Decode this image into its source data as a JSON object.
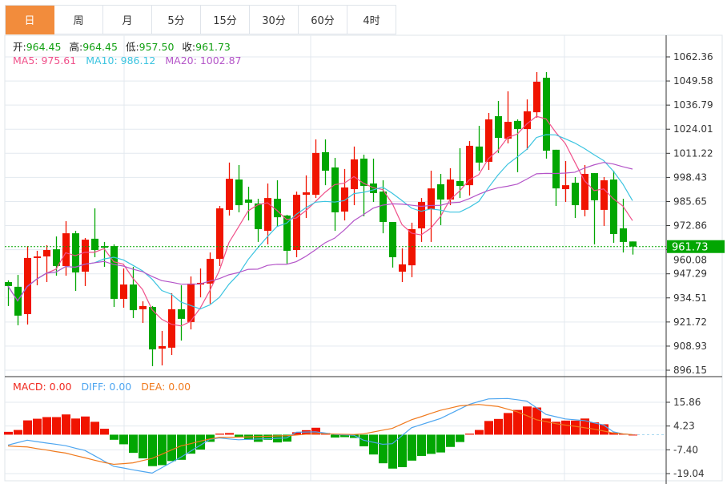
{
  "tabs": [
    {
      "label": "日",
      "active": true
    },
    {
      "label": "周"
    },
    {
      "label": "月"
    },
    {
      "label": "5分"
    },
    {
      "label": "15分"
    },
    {
      "label": "30分"
    },
    {
      "label": "60分"
    },
    {
      "label": "4时"
    }
  ],
  "legend": {
    "ohlc": [
      {
        "label": "开:",
        "value": "964.45"
      },
      {
        "label": "高:",
        "value": "964.45"
      },
      {
        "label": "低:",
        "value": "957.50"
      },
      {
        "label": "收:",
        "value": "961.73"
      }
    ],
    "ma": [
      {
        "text": "MA5: 975.61",
        "color": "#f0508a"
      },
      {
        "text": "MA10: 986.12",
        "color": "#3cc4e0"
      },
      {
        "text": "MA20: 1002.87",
        "color": "#b455c8"
      }
    ],
    "macd": [
      {
        "text": "MACD: 0.00",
        "color": "#f0281e"
      },
      {
        "text": "DIFF: 0.00",
        "color": "#4ea6f0"
      },
      {
        "text": "DEA: 0.00",
        "color": "#f07a1e"
      }
    ]
  },
  "colors": {
    "up": "#f01400",
    "down": "#02a602",
    "accent": "#f28c3c",
    "last_price": "#02a602"
  },
  "chart_data": [
    {
      "type": "candlestick",
      "ylim": [
        896.15,
        1062.36
      ],
      "y_ticks": [
        "1062.36",
        "1049.58",
        "1036.79",
        "1024.01",
        "1011.22",
        "998.43",
        "985.65",
        "972.86",
        "960.08",
        "947.29",
        "934.51",
        "921.72",
        "908.93",
        "896.15"
      ],
      "last_price": {
        "value": 961.73,
        "label": "961.73"
      },
      "grid": true,
      "ohlc": [
        [
          942.9,
          943.8,
          930.2,
          940.8
        ],
        [
          940.4,
          946.7,
          920.0,
          925.1
        ],
        [
          925.9,
          962.0,
          920.4,
          955.7
        ],
        [
          955.7,
          959.5,
          941.2,
          956.5
        ],
        [
          956.5,
          962.5,
          942.9,
          959.9
        ],
        [
          960.3,
          967.1,
          946.3,
          951.4
        ],
        [
          951.4,
          975.2,
          946.3,
          968.8
        ],
        [
          968.8,
          970.1,
          938.2,
          948.0
        ],
        [
          948.4,
          966.3,
          940.8,
          965.4
        ],
        [
          965.9,
          982.0,
          956.1,
          959.9
        ],
        [
          962.0,
          964.2,
          951.0,
          961.2
        ],
        [
          962.0,
          962.9,
          929.7,
          934.0
        ],
        [
          934.0,
          950.1,
          929.3,
          941.6
        ],
        [
          941.6,
          951.0,
          923.8,
          928.0
        ],
        [
          928.5,
          932.7,
          921.2,
          930.2
        ],
        [
          929.7,
          930.2,
          898.3,
          907.2
        ],
        [
          907.6,
          917.0,
          898.7,
          908.9
        ],
        [
          908.1,
          937.0,
          904.2,
          928.5
        ],
        [
          928.5,
          941.2,
          911.9,
          923.4
        ],
        [
          921.7,
          945.9,
          917.8,
          942.1
        ],
        [
          941.6,
          950.1,
          934.8,
          942.5
        ],
        [
          942.1,
          958.6,
          931.4,
          955.2
        ],
        [
          955.2,
          983.3,
          951.4,
          982.0
        ],
        [
          981.2,
          1006.3,
          978.2,
          997.7
        ],
        [
          997.3,
          1005.0,
          979.9,
          983.7
        ],
        [
          986.7,
          993.5,
          975.6,
          985.0
        ],
        [
          984.6,
          987.1,
          964.2,
          971.0
        ],
        [
          970.1,
          995.2,
          962.9,
          987.5
        ],
        [
          987.1,
          996.9,
          972.2,
          977.3
        ],
        [
          978.2,
          978.6,
          952.7,
          959.5
        ],
        [
          959.9,
          990.9,
          956.1,
          989.2
        ],
        [
          989.2,
          999.5,
          976.9,
          990.5
        ],
        [
          989.2,
          1018.6,
          987.5,
          1011.4
        ],
        [
          1011.8,
          1018.6,
          994.3,
          1002.0
        ],
        [
          1003.7,
          1008.8,
          970.1,
          979.9
        ],
        [
          980.3,
          1002.9,
          975.6,
          993.1
        ],
        [
          992.2,
          1014.8,
          983.7,
          1008.0
        ],
        [
          1008.4,
          1010.5,
          977.8,
          993.9
        ],
        [
          995.2,
          1008.4,
          985.4,
          990.1
        ],
        [
          990.9,
          996.9,
          968.8,
          974.8
        ],
        [
          974.8,
          974.8,
          950.6,
          956.1
        ],
        [
          948.4,
          960.8,
          942.9,
          952.3
        ],
        [
          951.8,
          974.4,
          945.5,
          971.0
        ],
        [
          971.4,
          987.5,
          964.2,
          985.4
        ],
        [
          981.6,
          1002.0,
          964.2,
          992.6
        ],
        [
          994.8,
          1000.3,
          973.1,
          986.7
        ],
        [
          986.7,
          1003.3,
          983.7,
          997.3
        ],
        [
          996.5,
          1013.9,
          987.5,
          993.9
        ],
        [
          994.3,
          1017.7,
          988.8,
          1015.2
        ],
        [
          1014.8,
          1025.8,
          1002.0,
          1006.3
        ],
        [
          1006.7,
          1032.6,
          1002.4,
          1029.2
        ],
        [
          1030.9,
          1039.0,
          1011.4,
          1019.4
        ],
        [
          1019.0,
          1044.1,
          1016.5,
          1027.9
        ],
        [
          1028.4,
          1029.2,
          1001.2,
          1024.1
        ],
        [
          1024.1,
          1039.8,
          1013.1,
          1033.5
        ],
        [
          1033.0,
          1054.3,
          1030.1,
          1049.2
        ],
        [
          1051.3,
          1054.3,
          1008.4,
          1012.6
        ],
        [
          1013.1,
          1013.1,
          983.3,
          992.6
        ],
        [
          992.2,
          1007.1,
          985.4,
          994.3
        ],
        [
          995.6,
          998.6,
          976.9,
          983.7
        ],
        [
          981.2,
          1005.0,
          977.8,
          1000.3
        ],
        [
          1000.7,
          1000.7,
          962.9,
          986.3
        ],
        [
          981.2,
          998.6,
          972.7,
          996.9
        ],
        [
          997.3,
          1002.0,
          963.7,
          968.4
        ],
        [
          971.4,
          987.1,
          958.6,
          964.2
        ],
        [
          964.45,
          964.45,
          957.5,
          961.73
        ]
      ],
      "ma_periods": [
        5,
        10,
        20
      ]
    },
    {
      "type": "bar+line",
      "ylim": [
        -19.04,
        15.86
      ],
      "y_ticks": [
        "15.86",
        "4.23",
        "-7.40",
        "-19.04"
      ],
      "grid": true,
      "macd": [
        1.4,
        2.3,
        7.0,
        7.8,
        8.6,
        8.6,
        9.9,
        7.9,
        8.9,
        6.3,
        2.9,
        -2.5,
        -4.7,
        -8.9,
        -11.6,
        -15.4,
        -14.9,
        -12.9,
        -12.3,
        -9.3,
        -7.3,
        -3.5,
        0.5,
        0.8,
        -1.2,
        -2.5,
        -3.5,
        -2.5,
        -3.8,
        -3.4,
        1.2,
        2.2,
        3.4,
        0.8,
        -1.4,
        -1.2,
        -1.6,
        -5.7,
        -9.7,
        -14.0,
        -16.6,
        -15.9,
        -12.7,
        -10.4,
        -9.4,
        -8.7,
        -6.0,
        -3.6,
        0.5,
        2.3,
        6.7,
        7.7,
        10.6,
        12.1,
        13.8,
        13.3,
        7.9,
        6.3,
        6.9,
        6.9,
        7.9,
        6.0,
        5.1,
        1.1,
        0.4,
        0.0
      ],
      "diff": [
        -5.1,
        -3.9,
        -2.7,
        -3.4,
        -4.1,
        -4.7,
        -5.4,
        -6.6,
        -7.7,
        -10.3,
        -12.9,
        -15.5,
        -16.3,
        -17.2,
        -18.0,
        -18.8,
        -16.2,
        -13.6,
        -11.0,
        -8.1,
        -5.2,
        -2.3,
        -1.6,
        -2.1,
        -2.5,
        -2.3,
        -2.1,
        -2.0,
        -1.8,
        -1.6,
        1.2,
        1.3,
        1.4,
        0.8,
        0.1,
        -0.1,
        -0.3,
        -2.7,
        -3.7,
        -4.7,
        -4.4,
        -0.5,
        3.4,
        4.9,
        6.4,
        7.9,
        10.2,
        12.5,
        14.8,
        16.2,
        17.5,
        17.6,
        17.7,
        17.1,
        16.4,
        13.2,
        9.9,
        8.8,
        7.7,
        7.3,
        6.9,
        5.8,
        4.7,
        1.4,
        0.4,
        0.0
      ],
      "dea": [
        -5.5,
        -5.8,
        -6.0,
        -6.8,
        -7.5,
        -8.3,
        -9.0,
        -10.2,
        -11.3,
        -12.5,
        -13.6,
        -14.5,
        -14.2,
        -13.8,
        -12.7,
        -11.6,
        -9.6,
        -7.5,
        -5.5,
        -4.4,
        -3.2,
        -2.1,
        -1.3,
        -1.3,
        -1.2,
        -1.1,
        -0.9,
        -0.8,
        -0.6,
        -0.5,
        -0.2,
        0.2,
        0.5,
        0.4,
        0.3,
        0.2,
        0.1,
        0.4,
        1.3,
        2.2,
        3.1,
        5.2,
        7.3,
        8.8,
        10.4,
        11.9,
        13.0,
        14.1,
        14.5,
        14.8,
        14.3,
        13.8,
        12.5,
        11.2,
        9.3,
        7.3,
        6.4,
        5.4,
        4.7,
        4.1,
        3.4,
        2.7,
        1.8,
        0.8,
        0.4,
        0.0
      ]
    }
  ]
}
